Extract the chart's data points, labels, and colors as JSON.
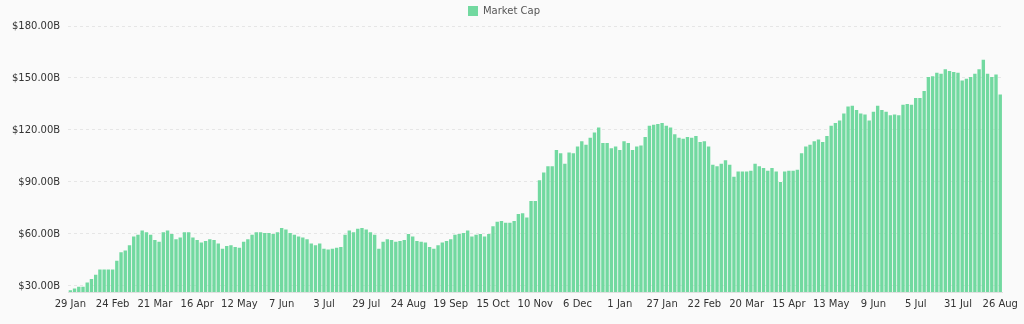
{
  "chart_data": {
    "type": "bar",
    "categories": [
      "29 Jan",
      null,
      null,
      null,
      null,
      null,
      null,
      null,
      null,
      null,
      "24 Feb",
      null,
      null,
      null,
      null,
      null,
      null,
      null,
      null,
      null,
      "21 Mar",
      null,
      null,
      null,
      null,
      null,
      null,
      null,
      null,
      null,
      "16 Apr",
      null,
      null,
      null,
      null,
      null,
      null,
      null,
      null,
      null,
      "12 May",
      null,
      null,
      null,
      null,
      null,
      null,
      null,
      null,
      null,
      "7 Jun",
      null,
      null,
      null,
      null,
      null,
      null,
      null,
      null,
      null,
      "3 Jul",
      null,
      null,
      null,
      null,
      null,
      null,
      null,
      null,
      null,
      "29 Jul",
      null,
      null,
      null,
      null,
      null,
      null,
      null,
      null,
      null,
      "24 Aug",
      null,
      null,
      null,
      null,
      null,
      null,
      null,
      null,
      null,
      "19 Sep",
      null,
      null,
      null,
      null,
      null,
      null,
      null,
      null,
      null,
      "15 Oct",
      null,
      null,
      null,
      null,
      null,
      null,
      null,
      null,
      null,
      "10 Nov",
      null,
      null,
      null,
      null,
      null,
      null,
      null,
      null,
      null,
      "6 Dec",
      null,
      null,
      null,
      null,
      null,
      null,
      null,
      null,
      null,
      "1 Jan",
      null,
      null,
      null,
      null,
      null,
      null,
      null,
      null,
      null,
      "27 Jan",
      null,
      null,
      null,
      null,
      null,
      null,
      null,
      null,
      null,
      "22 Feb",
      null,
      null,
      null,
      null,
      null,
      null,
      null,
      null,
      null,
      "20 Mar",
      null,
      null,
      null,
      null,
      null,
      null,
      null,
      null,
      null,
      "15 Apr",
      null,
      null,
      null,
      null,
      null,
      null,
      null,
      null,
      null,
      "13 May",
      null,
      null,
      null,
      null,
      null,
      null,
      null,
      null,
      null,
      "9 Jun",
      null,
      null,
      null,
      null,
      null,
      null,
      null,
      null,
      null,
      "5 Jul",
      null,
      null,
      null,
      null,
      null,
      null,
      null,
      null,
      null,
      "31 Jul",
      null,
      null,
      null,
      null,
      null,
      null,
      null,
      null,
      null,
      "26 Aug"
    ],
    "series": [
      {
        "name": "Market Cap",
        "color": "#72d9a0",
        "values": [
          27.5,
          28.5,
          29.5,
          29.5,
          32,
          34,
          36.5,
          39.5,
          39.5,
          39.5,
          39.5,
          44.5,
          49.5,
          50.5,
          53.5,
          58.5,
          59.5,
          62,
          61,
          59.5,
          56.5,
          55.5,
          61,
          62,
          60,
          57,
          58,
          61,
          61,
          58,
          56.5,
          55,
          56,
          57,
          56.5,
          54.5,
          51.5,
          53,
          53.5,
          52.5,
          52,
          55.5,
          57,
          59.5,
          61,
          61,
          60.5,
          60.5,
          60,
          61,
          63.5,
          62.5,
          60.5,
          59.5,
          58.5,
          58,
          57,
          54.5,
          53.5,
          54.5,
          51.5,
          51,
          51.5,
          52,
          52.5,
          59.5,
          62,
          61,
          63,
          63.5,
          62.5,
          61,
          59.5,
          51.5,
          55.5,
          57,
          56.5,
          55.5,
          56,
          56.5,
          60,
          58.5,
          56,
          55.5,
          55,
          52.5,
          51.5,
          53.5,
          55,
          56,
          57,
          59.5,
          60,
          60.5,
          62,
          58.5,
          59.5,
          60,
          58.5,
          60,
          64.5,
          67,
          67.5,
          66.5,
          66.5,
          67.5,
          71.5,
          72,
          69.5,
          79,
          79,
          91,
          95.5,
          99,
          99,
          108.5,
          106.5,
          100.5,
          107,
          106.5,
          110.5,
          113.5,
          111.5,
          115.5,
          118.5,
          121.5,
          112.5,
          112.5,
          109.5,
          110.5,
          108.5,
          113.5,
          112.5,
          108.5,
          110.5,
          111,
          116,
          122.5,
          123,
          123.5,
          124,
          122.5,
          121.5,
          117.5,
          115.5,
          115,
          116,
          115.5,
          116.5,
          113,
          113.5,
          110.5,
          100,
          99,
          100.5,
          102.5,
          100,
          93,
          96,
          96,
          96,
          96.5,
          100.5,
          99,
          98,
          96.5,
          98,
          96,
          90,
          96,
          96.5,
          96.5,
          97,
          106.5,
          110.5,
          111.5,
          113.5,
          114.5,
          113,
          116.5,
          122.5,
          124,
          125.5,
          129.5,
          133.5,
          134,
          131.5,
          129.5,
          129,
          125.5,
          130.5,
          134,
          131.5,
          130.5,
          128.5,
          129,
          128.5,
          134.5,
          135,
          134.5,
          138.5,
          138.5,
          142.5,
          150.5,
          151,
          153,
          152.5,
          155,
          154,
          153.5,
          153,
          148.5,
          149.5,
          150.5,
          152.5,
          155,
          160.5,
          152.5,
          150.5,
          152,
          140.5
        ]
      }
    ],
    "ylim": [
      26.5,
      180
    ],
    "yticks": [
      {
        "value": 30,
        "label": "$30.00B"
      },
      {
        "value": 60,
        "label": "$60.00B"
      },
      {
        "value": 90,
        "label": "$90.00B"
      },
      {
        "value": 120,
        "label": "$120.00B"
      },
      {
        "value": 150,
        "label": "$150.00B"
      },
      {
        "value": 180,
        "label": "$180.00B"
      }
    ],
    "grid": "y",
    "legend": "top"
  }
}
